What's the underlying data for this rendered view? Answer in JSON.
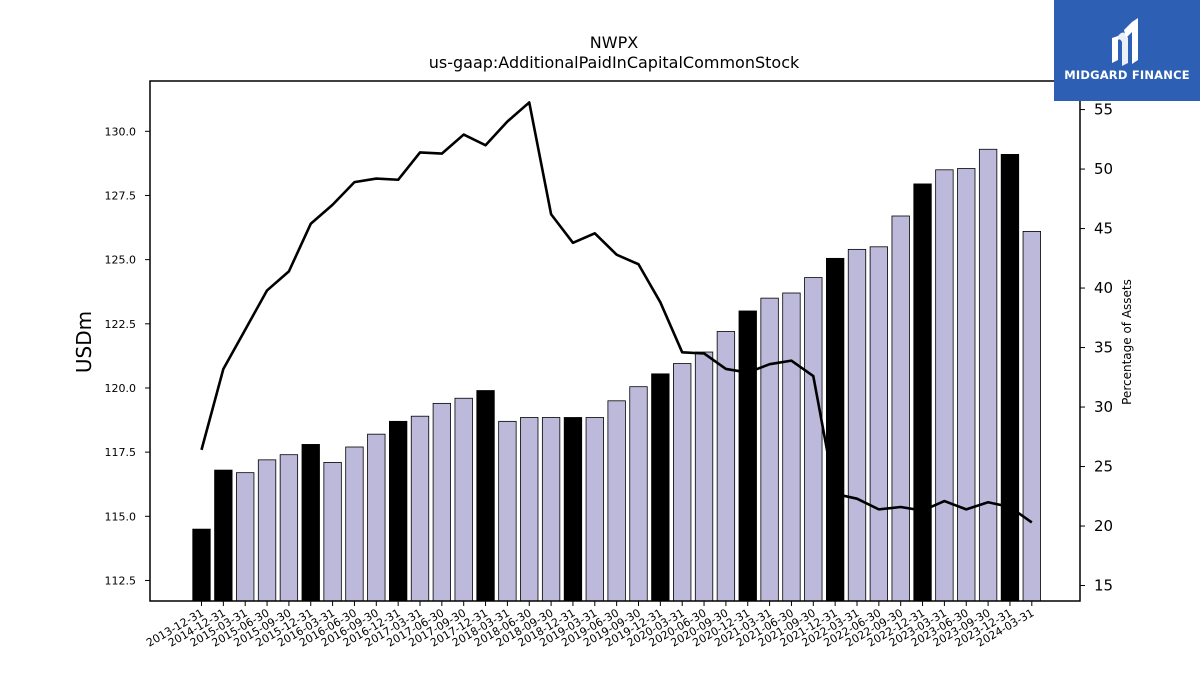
{
  "chart_data": {
    "type": "bar",
    "title": "NWPX",
    "subtitle": "us-gaap:AdditionalPaidInCapitalCommonStock",
    "ylabel": "USDm",
    "y2label": "Percentage of Assets",
    "ylim": [
      111.7,
      131.96
    ],
    "y2lim": [
      13.7,
      57.4
    ],
    "yticks": [
      112.5,
      115.0,
      117.5,
      120.0,
      122.5,
      125.0,
      127.5,
      130.0
    ],
    "yticklabels": [
      "112.5",
      "115.0",
      "117.5",
      "120.0",
      "122.5",
      "125.0",
      "127.5",
      "130.0"
    ],
    "y2ticks": [
      15,
      20,
      25,
      30,
      35,
      40,
      45,
      50,
      55
    ],
    "y2ticklabels": [
      "15",
      "20",
      "25",
      "30",
      "35",
      "40",
      "45",
      "50",
      "55"
    ],
    "categories": [
      "2013-12-31",
      "2014-12-31",
      "2015-03-31",
      "2015-06-30",
      "2015-09-30",
      "2015-12-31",
      "2016-03-31",
      "2016-06-30",
      "2016-09-30",
      "2016-12-31",
      "2017-03-31",
      "2017-06-30",
      "2017-09-30",
      "2017-12-31",
      "2018-03-31",
      "2018-06-30",
      "2018-09-30",
      "2018-12-31",
      "2019-03-31",
      "2019-06-30",
      "2019-09-30",
      "2019-12-31",
      "2020-03-31",
      "2020-06-30",
      "2020-09-30",
      "2020-12-31",
      "2021-03-31",
      "2021-06-30",
      "2021-09-30",
      "2021-12-31",
      "2022-03-31",
      "2022-06-30",
      "2022-09-30",
      "2022-12-31",
      "2023-03-31",
      "2023-06-30",
      "2023-09-30",
      "2023-12-31",
      "2024-03-31"
    ],
    "series": [
      {
        "type": "bar",
        "values": [
          114.5,
          116.8,
          116.7,
          117.2,
          117.4,
          117.8,
          117.1,
          117.7,
          118.2,
          118.7,
          118.9,
          119.4,
          119.6,
          119.9,
          118.7,
          118.85,
          118.85,
          118.85,
          118.85,
          119.5,
          120.05,
          120.55,
          120.95,
          121.4,
          122.2,
          123.0,
          123.5,
          123.7,
          124.3,
          125.05,
          125.4,
          125.5,
          126.7,
          127.95,
          128.5,
          128.55,
          129.3,
          129.1,
          126.1
        ],
        "highlight_color": "#000000",
        "color": "#bdb9db",
        "highlight_flags": [
          1,
          1,
          0,
          0,
          0,
          1,
          0,
          0,
          0,
          1,
          0,
          0,
          0,
          1,
          0,
          0,
          0,
          1,
          0,
          0,
          0,
          1,
          0,
          0,
          0,
          1,
          0,
          0,
          0,
          1,
          0,
          0,
          0,
          1,
          0,
          0,
          0,
          1,
          0
        ]
      },
      {
        "type": "line",
        "axis": "right",
        "color": "#000000",
        "values": [
          26.4,
          33.2,
          36.5,
          39.8,
          41.4,
          45.4,
          47.0,
          48.9,
          49.2,
          49.1,
          51.4,
          51.3,
          52.9,
          52.0,
          54.0,
          55.6,
          46.2,
          43.8,
          44.6,
          42.8,
          42.0,
          38.8,
          34.6,
          34.5,
          33.2,
          32.9,
          33.6,
          33.9,
          32.6,
          22.7,
          22.3,
          21.4,
          21.6,
          21.3,
          22.1,
          21.4,
          22.0,
          21.6,
          20.3
        ]
      }
    ]
  },
  "logo": {
    "text": "MIDGARD FINANCE",
    "color": "#2d5fb4"
  }
}
